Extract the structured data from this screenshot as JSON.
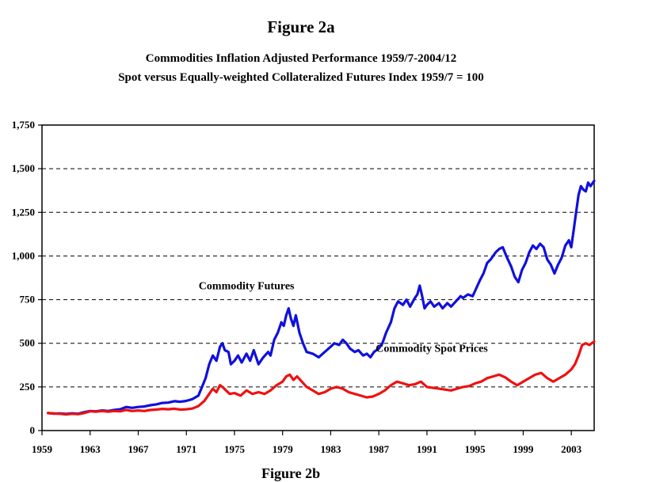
{
  "figure": {
    "label": "Figure 2a",
    "next_label": "Figure 2b"
  },
  "chart_data": {
    "type": "line",
    "title": "Commodities Inflation Adjusted Performance 1959/7-2004/12",
    "subtitle": "Spot versus Equally-weighted Collateralized Futures Index 1959/7 = 100",
    "xlabel": "",
    "ylabel": "",
    "xlim": [
      1959,
      2004.9
    ],
    "ylim": [
      0,
      1750
    ],
    "x_ticks": [
      1959,
      1963,
      1967,
      1971,
      1975,
      1979,
      1983,
      1987,
      1991,
      1995,
      1999,
      2003
    ],
    "y_ticks": [
      0,
      250,
      500,
      750,
      1000,
      1250,
      1500,
      1750
    ],
    "y_tick_labels": [
      "0",
      "250",
      "500",
      "750",
      "1,000",
      "1,250",
      "1,500",
      "1,750"
    ],
    "grid": "horizontal dashed",
    "annotations": [
      {
        "text": "Commodity Futures",
        "x": 1976.0,
        "y": 810
      },
      {
        "text": "Commodity Spot Prices",
        "x": 1991.4,
        "y": 450
      }
    ],
    "series": [
      {
        "name": "Commodity Futures",
        "color": "#1010dd",
        "points": [
          [
            1959.5,
            100
          ],
          [
            1960,
            97
          ],
          [
            1960.5,
            98
          ],
          [
            1961,
            95
          ],
          [
            1961.5,
            99
          ],
          [
            1962,
            96
          ],
          [
            1962.5,
            105
          ],
          [
            1963,
            112
          ],
          [
            1963.5,
            110
          ],
          [
            1964,
            115
          ],
          [
            1964.5,
            112
          ],
          [
            1965,
            118
          ],
          [
            1965.5,
            122
          ],
          [
            1966,
            135
          ],
          [
            1966.5,
            130
          ],
          [
            1967,
            135
          ],
          [
            1967.5,
            138
          ],
          [
            1968,
            145
          ],
          [
            1968.5,
            150
          ],
          [
            1969,
            158
          ],
          [
            1969.5,
            160
          ],
          [
            1970,
            168
          ],
          [
            1970.5,
            165
          ],
          [
            1971,
            170
          ],
          [
            1971.5,
            180
          ],
          [
            1972,
            200
          ],
          [
            1972.3,
            250
          ],
          [
            1972.6,
            300
          ],
          [
            1972.9,
            380
          ],
          [
            1973.2,
            430
          ],
          [
            1973.5,
            400
          ],
          [
            1973.8,
            480
          ],
          [
            1974,
            500
          ],
          [
            1974.2,
            460
          ],
          [
            1974.5,
            450
          ],
          [
            1974.7,
            380
          ],
          [
            1975,
            400
          ],
          [
            1975.3,
            430
          ],
          [
            1975.6,
            390
          ],
          [
            1976,
            440
          ],
          [
            1976.3,
            400
          ],
          [
            1976.6,
            460
          ],
          [
            1977,
            380
          ],
          [
            1977.4,
            420
          ],
          [
            1977.8,
            450
          ],
          [
            1978,
            430
          ],
          [
            1978.3,
            520
          ],
          [
            1978.6,
            560
          ],
          [
            1978.9,
            620
          ],
          [
            1979.1,
            600
          ],
          [
            1979.3,
            660
          ],
          [
            1979.5,
            700
          ],
          [
            1979.7,
            640
          ],
          [
            1979.9,
            600
          ],
          [
            1980.1,
            660
          ],
          [
            1980.4,
            560
          ],
          [
            1980.7,
            500
          ],
          [
            1981,
            450
          ],
          [
            1981.5,
            440
          ],
          [
            1982,
            420
          ],
          [
            1982.5,
            450
          ],
          [
            1983,
            480
          ],
          [
            1983.3,
            500
          ],
          [
            1983.7,
            490
          ],
          [
            1984,
            520
          ],
          [
            1984.3,
            500
          ],
          [
            1984.6,
            470
          ],
          [
            1985,
            450
          ],
          [
            1985.3,
            460
          ],
          [
            1985.7,
            430
          ],
          [
            1986,
            440
          ],
          [
            1986.3,
            420
          ],
          [
            1986.6,
            450
          ],
          [
            1987,
            470
          ],
          [
            1987.3,
            500
          ],
          [
            1987.6,
            560
          ],
          [
            1988,
            620
          ],
          [
            1988.3,
            700
          ],
          [
            1988.6,
            740
          ],
          [
            1989,
            720
          ],
          [
            1989.3,
            750
          ],
          [
            1989.6,
            710
          ],
          [
            1990,
            760
          ],
          [
            1990.2,
            780
          ],
          [
            1990.4,
            830
          ],
          [
            1990.6,
            770
          ],
          [
            1990.8,
            700
          ],
          [
            1991,
            720
          ],
          [
            1991.3,
            740
          ],
          [
            1991.6,
            710
          ],
          [
            1992,
            730
          ],
          [
            1992.3,
            700
          ],
          [
            1992.7,
            730
          ],
          [
            1993,
            710
          ],
          [
            1993.4,
            740
          ],
          [
            1993.8,
            770
          ],
          [
            1994,
            760
          ],
          [
            1994.4,
            780
          ],
          [
            1994.8,
            770
          ],
          [
            1995,
            800
          ],
          [
            1995.4,
            860
          ],
          [
            1995.7,
            900
          ],
          [
            1996,
            960
          ],
          [
            1996.3,
            980
          ],
          [
            1996.7,
            1020
          ],
          [
            1997,
            1040
          ],
          [
            1997.3,
            1050
          ],
          [
            1997.6,
            1000
          ],
          [
            1998,
            940
          ],
          [
            1998.3,
            880
          ],
          [
            1998.6,
            850
          ],
          [
            1998.9,
            920
          ],
          [
            1999.2,
            960
          ],
          [
            1999.5,
            1020
          ],
          [
            1999.8,
            1060
          ],
          [
            2000.1,
            1040
          ],
          [
            2000.4,
            1070
          ],
          [
            2000.7,
            1050
          ],
          [
            2001,
            980
          ],
          [
            2001.3,
            950
          ],
          [
            2001.6,
            900
          ],
          [
            2001.9,
            950
          ],
          [
            2002.2,
            990
          ],
          [
            2002.5,
            1060
          ],
          [
            2002.8,
            1090
          ],
          [
            2003,
            1050
          ],
          [
            2003.2,
            1150
          ],
          [
            2003.4,
            1250
          ],
          [
            2003.6,
            1350
          ],
          [
            2003.8,
            1400
          ],
          [
            2004,
            1380
          ],
          [
            2004.2,
            1370
          ],
          [
            2004.4,
            1420
          ],
          [
            2004.6,
            1400
          ],
          [
            2004.9,
            1430
          ]
        ]
      },
      {
        "name": "Commodity Spot Prices",
        "color": "#ee1111",
        "points": [
          [
            1959.5,
            100
          ],
          [
            1960,
            98
          ],
          [
            1960.5,
            96
          ],
          [
            1961,
            92
          ],
          [
            1961.5,
            96
          ],
          [
            1962,
            94
          ],
          [
            1962.5,
            100
          ],
          [
            1963,
            110
          ],
          [
            1963.5,
            108
          ],
          [
            1964,
            112
          ],
          [
            1964.5,
            108
          ],
          [
            1965,
            112
          ],
          [
            1965.5,
            110
          ],
          [
            1966,
            118
          ],
          [
            1966.5,
            112
          ],
          [
            1967,
            115
          ],
          [
            1967.5,
            112
          ],
          [
            1968,
            118
          ],
          [
            1968.5,
            120
          ],
          [
            1969,
            124
          ],
          [
            1969.5,
            122
          ],
          [
            1970,
            125
          ],
          [
            1970.5,
            120
          ],
          [
            1971,
            122
          ],
          [
            1971.5,
            126
          ],
          [
            1972,
            140
          ],
          [
            1972.5,
            170
          ],
          [
            1972.9,
            210
          ],
          [
            1973.2,
            240
          ],
          [
            1973.5,
            220
          ],
          [
            1973.8,
            260
          ],
          [
            1974,
            250
          ],
          [
            1974.3,
            230
          ],
          [
            1974.6,
            210
          ],
          [
            1975,
            215
          ],
          [
            1975.5,
            200
          ],
          [
            1976,
            230
          ],
          [
            1976.5,
            210
          ],
          [
            1977,
            220
          ],
          [
            1977.5,
            210
          ],
          [
            1978,
            230
          ],
          [
            1978.5,
            260
          ],
          [
            1979,
            280
          ],
          [
            1979.3,
            310
          ],
          [
            1979.6,
            320
          ],
          [
            1979.9,
            290
          ],
          [
            1980.2,
            310
          ],
          [
            1980.6,
            280
          ],
          [
            1981,
            250
          ],
          [
            1981.5,
            230
          ],
          [
            1982,
            210
          ],
          [
            1982.5,
            220
          ],
          [
            1983,
            240
          ],
          [
            1983.5,
            250
          ],
          [
            1984,
            240
          ],
          [
            1984.5,
            220
          ],
          [
            1985,
            210
          ],
          [
            1985.5,
            200
          ],
          [
            1986,
            190
          ],
          [
            1986.5,
            195
          ],
          [
            1987,
            210
          ],
          [
            1987.5,
            230
          ],
          [
            1988,
            260
          ],
          [
            1988.5,
            280
          ],
          [
            1989,
            270
          ],
          [
            1989.5,
            260
          ],
          [
            1990,
            265
          ],
          [
            1990.5,
            280
          ],
          [
            1991,
            250
          ],
          [
            1991.5,
            245
          ],
          [
            1992,
            240
          ],
          [
            1992.5,
            235
          ],
          [
            1993,
            230
          ],
          [
            1993.5,
            240
          ],
          [
            1994,
            250
          ],
          [
            1994.5,
            255
          ],
          [
            1995,
            270
          ],
          [
            1995.5,
            280
          ],
          [
            1996,
            300
          ],
          [
            1996.5,
            310
          ],
          [
            1997,
            320
          ],
          [
            1997.5,
            305
          ],
          [
            1998,
            280
          ],
          [
            1998.5,
            260
          ],
          [
            1999,
            280
          ],
          [
            1999.5,
            300
          ],
          [
            2000,
            320
          ],
          [
            2000.5,
            330
          ],
          [
            2001,
            300
          ],
          [
            2001.5,
            280
          ],
          [
            2002,
            300
          ],
          [
            2002.5,
            320
          ],
          [
            2003,
            350
          ],
          [
            2003.3,
            380
          ],
          [
            2003.6,
            430
          ],
          [
            2003.9,
            490
          ],
          [
            2004.2,
            500
          ],
          [
            2004.5,
            490
          ],
          [
            2004.9,
            510
          ]
        ]
      }
    ]
  }
}
